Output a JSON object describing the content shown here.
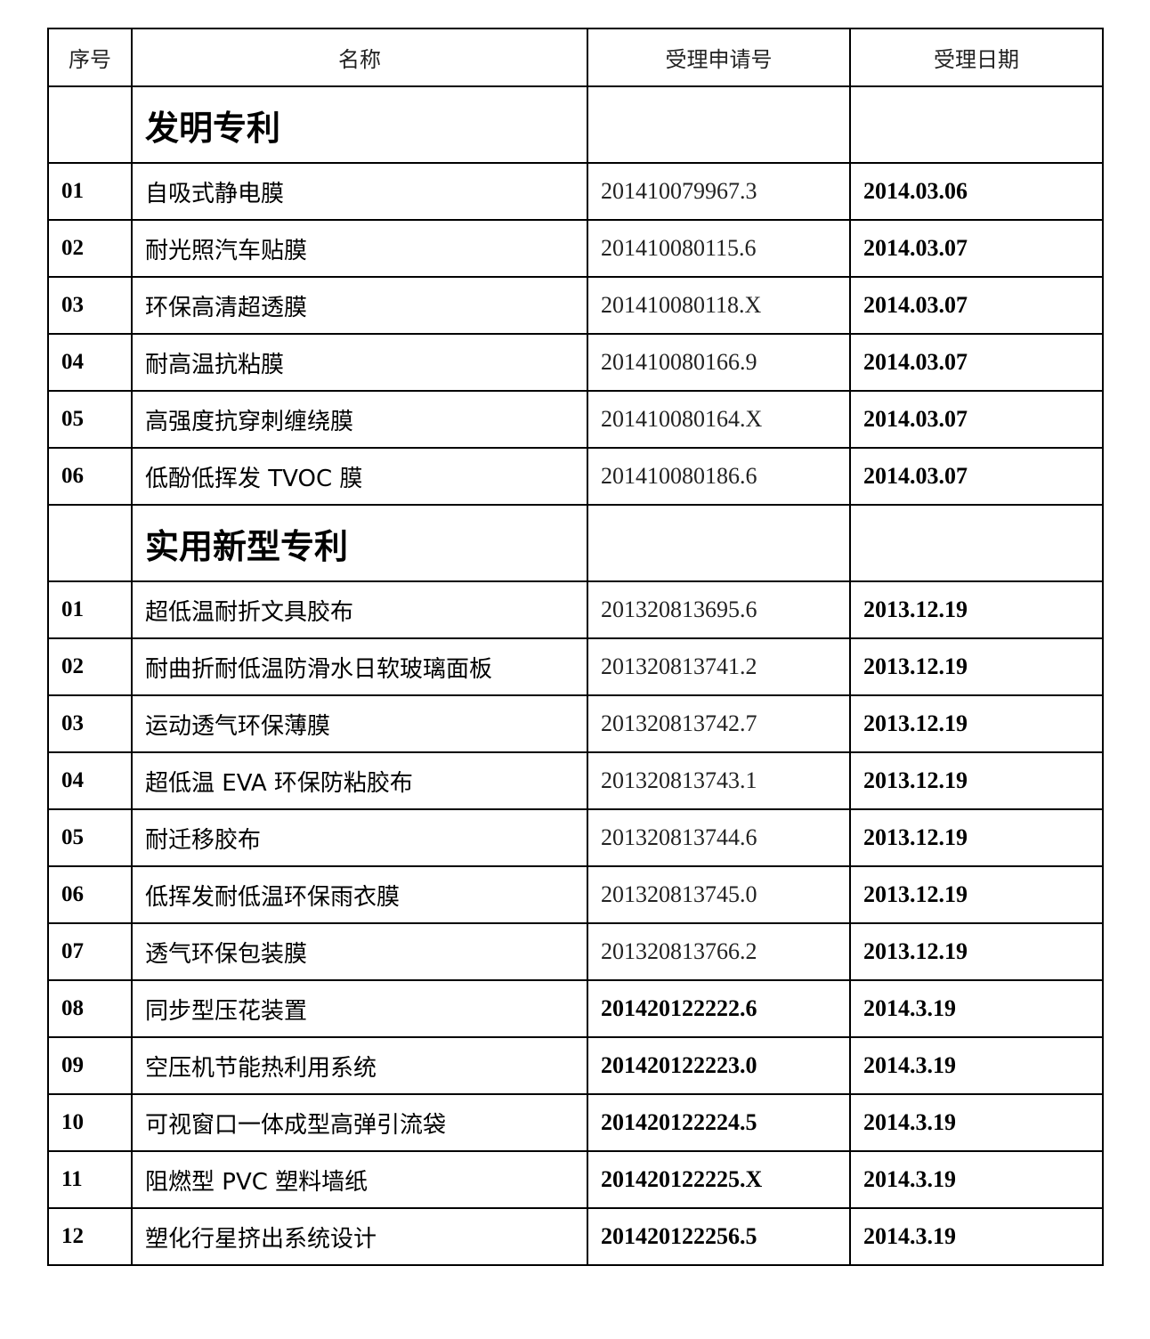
{
  "headers": [
    "序号",
    "名称",
    "受理申请号",
    "受理日期"
  ],
  "sections": [
    {
      "title": "发明专利",
      "rows": [
        {
          "no": "01",
          "name": "自吸式静电膜",
          "app_no": "201410079967.3",
          "date": "2014.03.06",
          "app_bold": false
        },
        {
          "no": "02",
          "name": "耐光照汽车贴膜",
          "app_no": "201410080115.6",
          "date": "2014.03.07",
          "app_bold": false
        },
        {
          "no": "03",
          "name": "环保高清超透膜",
          "app_no": "201410080118.X",
          "date": "2014.03.07",
          "app_bold": false
        },
        {
          "no": "04",
          "name": "耐高温抗粘膜",
          "app_no": "201410080166.9",
          "date": "2014.03.07",
          "app_bold": false
        },
        {
          "no": "05",
          "name": "高强度抗穿刺缠绕膜",
          "app_no": "201410080164.X",
          "date": "2014.03.07",
          "app_bold": false
        },
        {
          "no": "06",
          "name": "低酚低挥发 TVOC 膜",
          "app_no": "201410080186.6",
          "date": "2014.03.07",
          "app_bold": false
        }
      ]
    },
    {
      "title": "实用新型专利",
      "rows": [
        {
          "no": "01",
          "name": "超低温耐折文具胶布",
          "app_no": "201320813695.6",
          "date": "2013.12.19",
          "app_bold": false
        },
        {
          "no": "02",
          "name": "耐曲折耐低温防滑水日软玻璃面板",
          "app_no": "201320813741.2",
          "date": "2013.12.19",
          "app_bold": false
        },
        {
          "no": "03",
          "name": "运动透气环保薄膜",
          "app_no": "201320813742.7",
          "date": "2013.12.19",
          "app_bold": false
        },
        {
          "no": "04",
          "name": "超低温 EVA 环保防粘胶布",
          "app_no": "201320813743.1",
          "date": "2013.12.19",
          "app_bold": false
        },
        {
          "no": "05",
          "name": "耐迁移胶布",
          "app_no": "201320813744.6",
          "date": "2013.12.19",
          "app_bold": false
        },
        {
          "no": "06",
          "name": "低挥发耐低温环保雨衣膜",
          "app_no": "201320813745.0",
          "date": "2013.12.19",
          "app_bold": false
        },
        {
          "no": "07",
          "name": "透气环保包装膜",
          "app_no": "201320813766.2",
          "date": "2013.12.19",
          "app_bold": false
        },
        {
          "no": "08",
          "name": "同步型压花装置",
          "app_no": "201420122222.6",
          "date": "2014.3.19",
          "app_bold": true
        },
        {
          "no": "09",
          "name": "空压机节能热利用系统",
          "app_no": "201420122223.0",
          "date": "2014.3.19",
          "app_bold": true
        },
        {
          "no": "10",
          "name": "可视窗口一体成型高弹引流袋",
          "app_no": "201420122224.5",
          "date": "2014.3.19",
          "app_bold": true
        },
        {
          "no": "11",
          "name": "阻燃型 PVC 塑料墙纸",
          "app_no": "201420122225.X",
          "date": "2014.3.19",
          "app_bold": true
        },
        {
          "no": "12",
          "name": "塑化行星挤出系统设计",
          "app_no": "201420122256.5",
          "date": "2014.3.19",
          "app_bold": true
        }
      ]
    }
  ]
}
